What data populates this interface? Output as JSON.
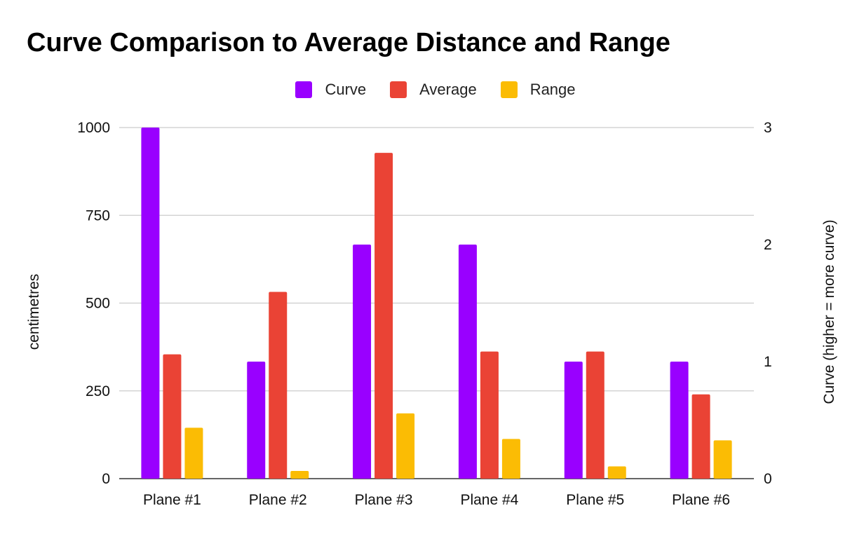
{
  "chart_data": {
    "type": "bar",
    "title": "Curve Comparison to Average Distance and Range",
    "categories": [
      "Plane #1",
      "Plane #2",
      "Plane #3",
      "Plane #4",
      "Plane #5",
      "Plane #6"
    ],
    "series": [
      {
        "name": "Curve",
        "axis": "right",
        "color": "#9900ff",
        "values": [
          3,
          1,
          2,
          2,
          1,
          1
        ]
      },
      {
        "name": "Average",
        "axis": "left",
        "color": "#ea4335",
        "values": [
          354,
          532,
          928,
          362,
          362,
          240
        ]
      },
      {
        "name": "Range",
        "axis": "left",
        "color": "#fbbc04",
        "values": [
          145,
          22,
          186,
          113,
          35,
          109
        ]
      }
    ],
    "ylabel": "centimetres",
    "ylabel_right": "Curve (higher = more curve)",
    "xlabel": "",
    "ylim": [
      0,
      1000
    ],
    "ylim_right": [
      0,
      3
    ],
    "yticks": [
      "0",
      "250",
      "500",
      "750",
      "1000"
    ],
    "yticks_right": [
      "0",
      "1",
      "2",
      "3"
    ],
    "grid": true,
    "legend_position": "top-center"
  }
}
